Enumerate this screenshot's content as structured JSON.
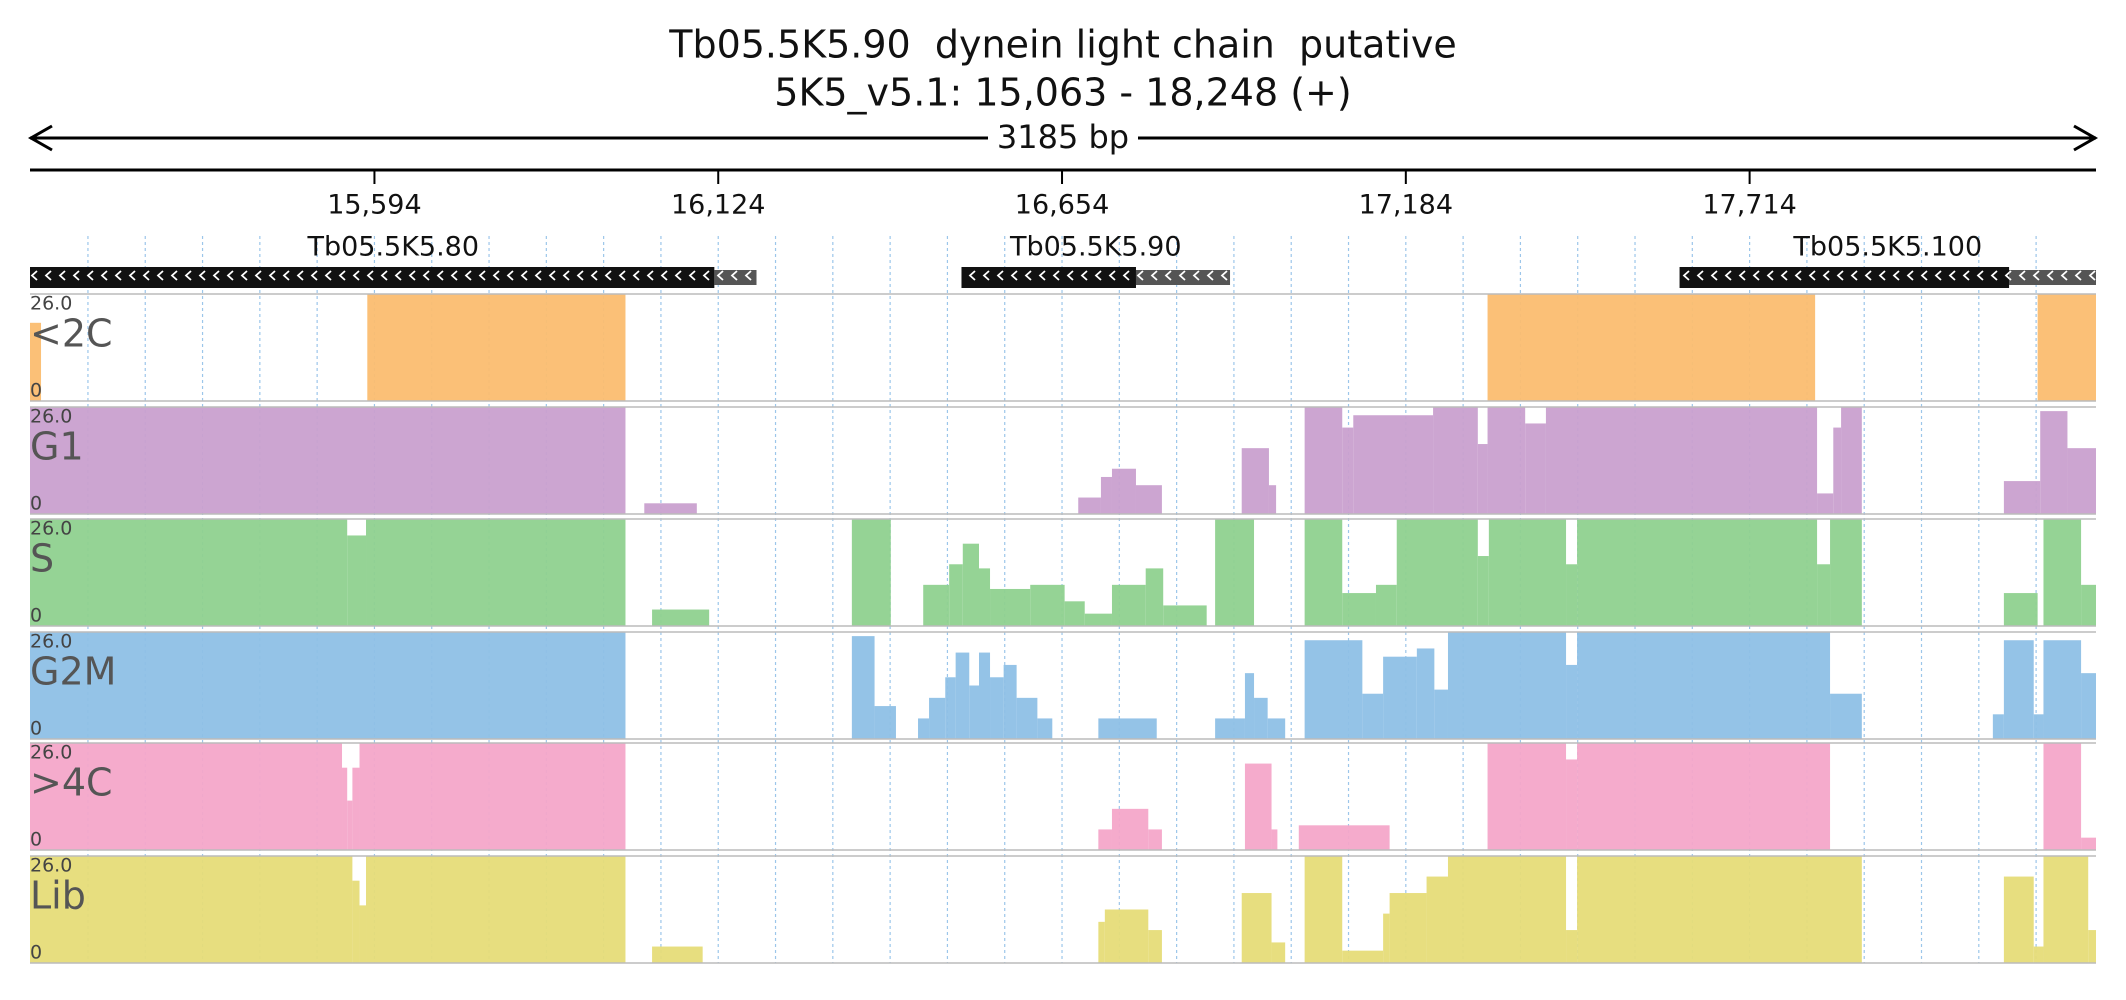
{
  "title": "Tb05.5K5.90  dynein light chain  putative",
  "subtitle": "5K5_v5.1: 15,063 - 18,248 (+)",
  "span_label": "3185 bp",
  "xlim": [
    15063,
    18248
  ],
  "xticks": [
    {
      "value": 15594,
      "label": "15,594"
    },
    {
      "value": 16124,
      "label": "16,124"
    },
    {
      "value": 16654,
      "label": "16,654"
    },
    {
      "value": 17184,
      "label": "17,184"
    },
    {
      "value": 17714,
      "label": "17,714"
    }
  ],
  "genes": [
    {
      "name": "Tb05.5K5.80",
      "start": 15063,
      "thick_end": 16118,
      "end": 16183
    },
    {
      "name": "Tb05.5K5.90",
      "start": 16499,
      "thick_end": 16768,
      "end": 16913
    },
    {
      "name": "Tb05.5K5.100",
      "start": 17606,
      "thick_end": 18114,
      "end": 18248
    }
  ],
  "chart_data": [
    {
      "type": "histogram",
      "label": "<2C",
      "color": "#fbbd70",
      "ylim": [
        0,
        26
      ],
      "yticks": [
        {
          "value": 26,
          "label": "26.0"
        },
        0
      ],
      "bins": [
        15063,
        15080,
        15583,
        15981,
        17310,
        17815,
        18158,
        18248
      ],
      "values": [
        19,
        0,
        26,
        0,
        26,
        0,
        26
      ]
    },
    {
      "type": "histogram",
      "label": "G1",
      "color": "#c9a0cf",
      "ylim": [
        0,
        26
      ],
      "yticks": [
        {
          "value": 26,
          "label": "26.0"
        },
        0
      ],
      "bins": [
        15063,
        15981,
        16010,
        16091,
        16679,
        16714,
        16731,
        16768,
        16808,
        16931,
        16973,
        16984,
        17028,
        17086,
        17103,
        17226,
        17295,
        17310,
        17368,
        17400,
        17818,
        17843,
        17855,
        17887,
        18106,
        18162,
        18204,
        18248
      ],
      "values": [
        26,
        0,
        2.6,
        0,
        4,
        9,
        11,
        7,
        0,
        16,
        7,
        0,
        26,
        21,
        24,
        26,
        17,
        26,
        22,
        26,
        5,
        21,
        26,
        0,
        8,
        25,
        16
      ]
    },
    {
      "type": "histogram",
      "label": "S",
      "color": "#8fd18f",
      "ylim": [
        0,
        26
      ],
      "yticks": [
        {
          "value": 26,
          "label": "26.0"
        },
        0
      ],
      "bins": [
        15063,
        15552,
        15581,
        15981,
        16022,
        16110,
        16330,
        16390,
        16440,
        16480,
        16501,
        16526,
        16543,
        16605,
        16658,
        16689,
        16731,
        16783,
        16810,
        16877,
        16890,
        16950,
        17028,
        17086,
        17138,
        17170,
        17295,
        17312,
        17431,
        17448,
        17818,
        17838,
        17887,
        18106,
        18158,
        18167,
        18225,
        18248
      ],
      "values": [
        26,
        22,
        26,
        0,
        4,
        0,
        26,
        0,
        10,
        15,
        20,
        14,
        9,
        10,
        6,
        3,
        10,
        14,
        5,
        0,
        26,
        0,
        26,
        8,
        10,
        26,
        17,
        26,
        15,
        26,
        15,
        26,
        0,
        8,
        0,
        26,
        10
      ]
    },
    {
      "type": "histogram",
      "label": "G2M",
      "color": "#8ec0e6",
      "ylim": [
        0,
        26
      ],
      "yticks": [
        {
          "value": 26,
          "label": "26.0"
        },
        0
      ],
      "bins": [
        15063,
        15981,
        16330,
        16365,
        16398,
        16432,
        16449,
        16474,
        16490,
        16511,
        16526,
        16543,
        16564,
        16584,
        16616,
        16639,
        16710,
        16800,
        16890,
        16936,
        16950,
        16971,
        16998,
        17028,
        17117,
        17149,
        17201,
        17228,
        17249,
        17431,
        17448,
        17838,
        17887,
        18089,
        18106,
        18152,
        18167,
        18225,
        18248
      ],
      "values": [
        26,
        0,
        25,
        8,
        0,
        5,
        10,
        15,
        21,
        13,
        21,
        15,
        18,
        10,
        5,
        0,
        5,
        0,
        5,
        16,
        10,
        5,
        0,
        24,
        11,
        20,
        22,
        12,
        26,
        18,
        26,
        11,
        0,
        6,
        24,
        6,
        24,
        16
      ]
    },
    {
      "type": "histogram",
      "label": ">4C",
      "color": "#f4a6c9",
      "ylim": [
        0,
        26
      ],
      "yticks": [
        {
          "value": 26,
          "label": "26.0"
        },
        0
      ],
      "bins": [
        15063,
        15544,
        15552,
        15560,
        15571,
        15981,
        16710,
        16731,
        16787,
        16808,
        16936,
        16977,
        16986,
        17019,
        17159,
        17310,
        17431,
        17448,
        17838,
        18167,
        18225,
        18248
      ],
      "values": [
        26,
        20,
        12,
        20,
        26,
        0,
        5,
        10,
        5,
        0,
        21,
        5,
        0,
        6,
        0,
        26,
        22,
        26,
        0,
        26,
        3
      ]
    },
    {
      "type": "histogram",
      "label": "Lib",
      "color": "#e6dc78",
      "ylim": [
        0,
        26
      ],
      "yticks": [
        {
          "value": 26,
          "label": "26.0"
        },
        0
      ],
      "bins": [
        15063,
        15560,
        15571,
        15581,
        15981,
        16022,
        16100,
        16710,
        16720,
        16787,
        16808,
        16931,
        16977,
        16998,
        17028,
        17086,
        17149,
        17159,
        17216,
        17249,
        17431,
        17448,
        17887,
        18106,
        18152,
        18167,
        18236,
        18248
      ],
      "values": [
        26,
        20,
        14,
        26,
        0,
        4,
        0,
        10,
        13,
        8,
        0,
        17,
        5,
        0,
        26,
        3,
        12,
        17,
        21,
        26,
        8,
        26,
        0,
        21,
        4,
        26,
        8
      ]
    }
  ]
}
